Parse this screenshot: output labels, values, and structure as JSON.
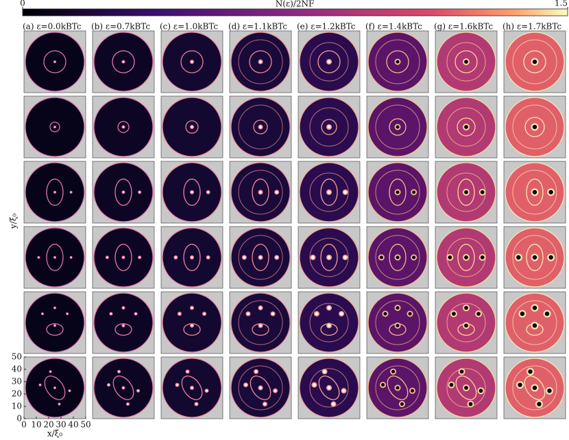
{
  "figure": {
    "colorbar": {
      "label": "N(ε)/2NF",
      "lim": [
        0,
        1.5
      ],
      "ticks": [
        0,
        1.5
      ]
    },
    "columns": [
      "(a) ε=0.0kBTc",
      "(b) ε=0.7kBTc",
      "(c) ε=1.0kBTc",
      "(d) ε=1.1kBTc",
      "(e) ε=1.2kBTc",
      "(f) ε=1.4kBTc",
      "(g) ε=1.6kBTc",
      "(h) ε=1.7kBTc"
    ],
    "xlabel": "x/ξ₀",
    "ylabel": "y/ξ₀",
    "xlim": [
      0,
      50
    ],
    "xticks": [
      0,
      10,
      20,
      30,
      40,
      50
    ],
    "ylim": [
      0,
      50
    ],
    "yticks": [
      0,
      10,
      20,
      30,
      40,
      50
    ]
  }
}
